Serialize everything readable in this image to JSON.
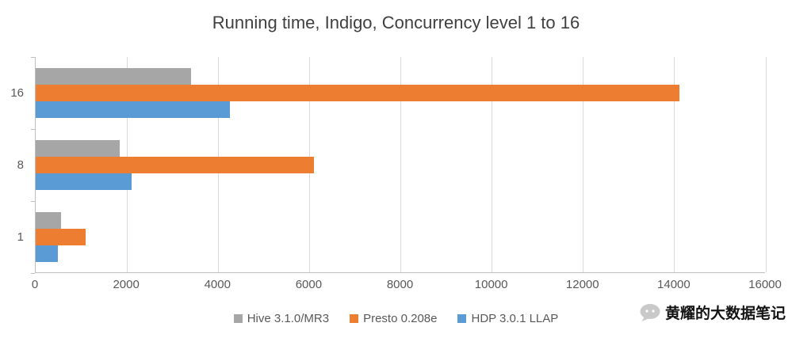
{
  "chart_data": {
    "type": "bar",
    "orientation": "horizontal",
    "title": "Running time, Indigo, Concurrency level 1 to 16",
    "categories": [
      "16",
      "8",
      "1"
    ],
    "series": [
      {
        "name": "Hive 3.1.0/MR3",
        "color": "#A6A6A6",
        "values": [
          3400,
          1850,
          550
        ]
      },
      {
        "name": "Presto 0.208e",
        "color": "#ED7D31",
        "values": [
          14100,
          6100,
          1100
        ]
      },
      {
        "name": "HDP 3.0.1 LLAP",
        "color": "#5B9BD5",
        "values": [
          4250,
          2100,
          480
        ]
      }
    ],
    "xlim": [
      0,
      16000
    ],
    "xticks": [
      0,
      2000,
      4000,
      6000,
      8000,
      10000,
      12000,
      14000,
      16000
    ],
    "xlabel": "",
    "ylabel": "",
    "grid": true,
    "legend_position": "bottom",
    "colors": {
      "gridline": "#D9D9D9",
      "axis": "#BFBFBF",
      "tick_text": "#595959",
      "title_text": "#404040"
    }
  },
  "watermark": {
    "text": "黄耀的大数据笔记",
    "icon": "chat-bubble-icon"
  }
}
